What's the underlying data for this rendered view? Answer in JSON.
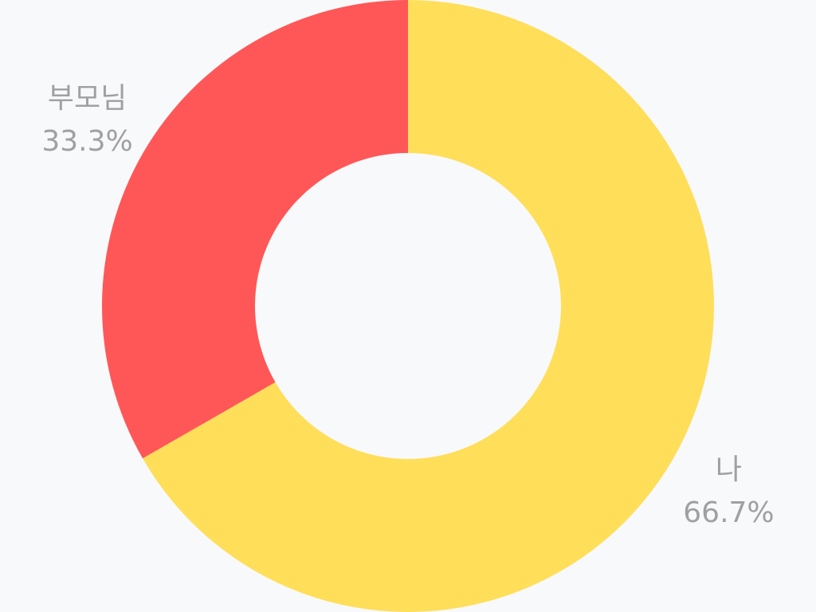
{
  "chart_data": {
    "type": "donut",
    "categories": [
      "나",
      "부모님"
    ],
    "values": [
      66.7,
      33.3
    ],
    "value_labels": [
      "66.7%",
      "33.3%"
    ],
    "colors": [
      "#ffde59",
      "#ff5757"
    ]
  }
}
